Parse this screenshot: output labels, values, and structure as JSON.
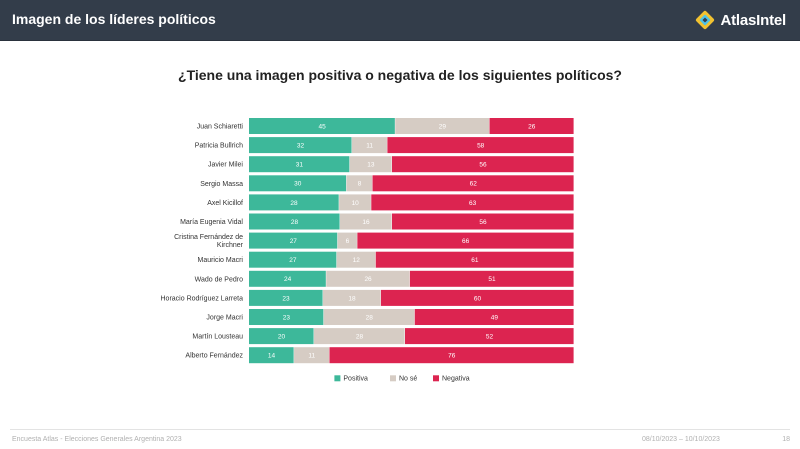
{
  "header": {
    "title": "Imagen de los líderes políticos",
    "brand": "AtlasIntel",
    "logo_icon": "atlasintel-diamond-logo"
  },
  "question": "¿Tiene una imagen positiva o negativa de los siguientes políticos?",
  "footer": {
    "source": "Encuesta Atlas - Elecciones Generales Argentina 2023",
    "dates": "08/10/2023 – 10/10/2023",
    "page": "18"
  },
  "colors": {
    "positiva": "#3db89a",
    "no_se": "#d6ccc4",
    "negativa": "#dc2450",
    "header_bg": "#333d4a"
  },
  "chart_data": {
    "type": "bar",
    "stacked": true,
    "orientation": "horizontal",
    "categories": [
      "Juan Schiaretti",
      "Patricia Bullrich",
      "Javier Milei",
      "Sergio Massa",
      "Axel Kicillof",
      "María Eugenia Vidal",
      "Cristina Fernández de Kirchner",
      "Mauricio Macri",
      "Wado de Pedro",
      "Horacio Rodríguez Larreta",
      "Jorge Macri",
      "Martín Lousteau",
      "Alberto Fernández"
    ],
    "series": [
      {
        "name": "Positiva",
        "color": "#3db89a",
        "values": [
          45,
          32,
          31,
          30,
          28,
          28,
          27,
          27,
          24,
          23,
          23,
          20,
          14
        ]
      },
      {
        "name": "No sé",
        "color": "#d6ccc4",
        "values": [
          29,
          11,
          13,
          8,
          10,
          16,
          6,
          12,
          26,
          18,
          28,
          28,
          11
        ]
      },
      {
        "name": "Negativa",
        "color": "#dc2450",
        "values": [
          26,
          58,
          56,
          62,
          63,
          56,
          66,
          61,
          51,
          60,
          49,
          52,
          76
        ]
      }
    ],
    "xlim": [
      0,
      100
    ],
    "legend": "bottom"
  }
}
